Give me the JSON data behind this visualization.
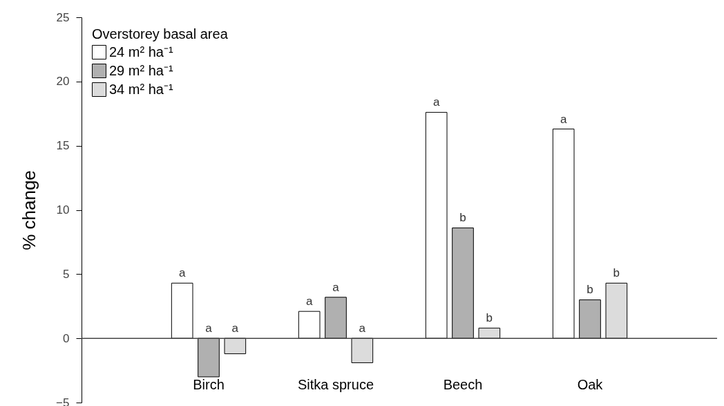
{
  "chart_data": {
    "type": "bar",
    "ylabel": "% change",
    "legend_title": "Overstorey basal area",
    "legend": "top left",
    "categories": [
      "Birch",
      "Sitka spruce",
      "Beech",
      "Oak"
    ],
    "series": [
      {
        "name": "24 m² ha⁻¹",
        "color": "#ffffff",
        "values": [
          4.3,
          2.1,
          17.6,
          16.3
        ],
        "value_labels": [
          "a",
          "a",
          "a",
          "a"
        ]
      },
      {
        "name": "29 m² ha⁻¹",
        "color": "#b0b0b0",
        "values": [
          -3.0,
          3.2,
          8.6,
          3.0
        ],
        "value_labels": [
          "a",
          "a",
          "b",
          "b"
        ]
      },
      {
        "name": "34 m² ha⁻¹",
        "color": "#dcdcdc",
        "values": [
          -1.2,
          -1.9,
          0.8,
          4.3
        ],
        "value_labels": [
          "a",
          "a",
          "b",
          "b"
        ]
      }
    ],
    "ylim": [
      -5,
      25
    ],
    "yticks": [
      -5,
      0,
      5,
      10,
      15,
      20,
      25
    ],
    "grid": false,
    "ref_lines": [
      {
        "axis": "y",
        "value": 0
      }
    ]
  }
}
